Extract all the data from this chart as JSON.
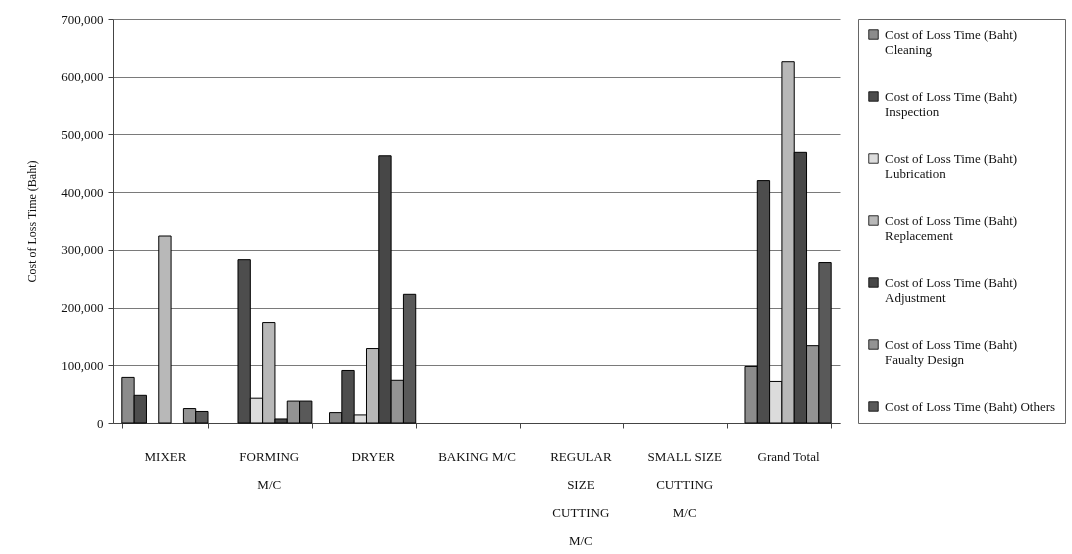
{
  "chart_data": {
    "type": "bar",
    "ylabel": "Cost of Loss Time (Baht)",
    "categories": [
      "MIXER",
      "FORMING M/C",
      "DRYER",
      "BAKING M/C",
      "REGULAR SIZE CUTTING M/C",
      "SMALL SIZE CUTTING M/C",
      "Grand Total"
    ],
    "ylim": [
      0,
      700000
    ],
    "yticks": [
      0,
      {
        "value": 100000,
        "label": "100,000"
      },
      {
        "value": 200000,
        "label": "200,000"
      },
      {
        "value": 300000,
        "label": "300,000"
      },
      {
        "value": 400000,
        "label": "400,000"
      },
      {
        "value": 500000,
        "label": "500,000"
      },
      {
        "value": 600000,
        "label": "600,000"
      },
      {
        "value": 700000,
        "label": "700,000"
      }
    ],
    "grid": "y",
    "legend": "right",
    "series": [
      {
        "name": "Cost of Loss Time (Baht) Cleaning",
        "color": "#8c8c8c",
        "values": [
          79000,
          null,
          18000,
          null,
          null,
          null,
          98000
        ]
      },
      {
        "name": "Cost of Loss Time (Baht) Inspection",
        "color": "#4d4d4d",
        "values": [
          48000,
          283000,
          91000,
          null,
          null,
          null,
          420000
        ]
      },
      {
        "name": "Cost of Loss Time (Baht) Lubrication",
        "color": "#dcdcdc",
        "values": [
          null,
          43000,
          14000,
          null,
          null,
          null,
          72000
        ]
      },
      {
        "name": "Cost of Loss Time (Baht) Replacement",
        "color": "#b8b8b8",
        "values": [
          324000,
          174000,
          129000,
          null,
          null,
          null,
          626000
        ]
      },
      {
        "name": "Cost of Loss Time (Baht) Adjustment",
        "color": "#474747",
        "values": [
          null,
          7000,
          463000,
          null,
          null,
          null,
          469000
        ]
      },
      {
        "name": "Cost of Loss Time (Baht) Faualty Design",
        "color": "#939393",
        "values": [
          25000,
          38000,
          74000,
          null,
          null,
          null,
          134000
        ]
      },
      {
        "name": "Cost of Loss Time (Baht) Others",
        "color": "#595959",
        "values": [
          20000,
          38000,
          223000,
          null,
          null,
          null,
          278000
        ]
      }
    ]
  }
}
